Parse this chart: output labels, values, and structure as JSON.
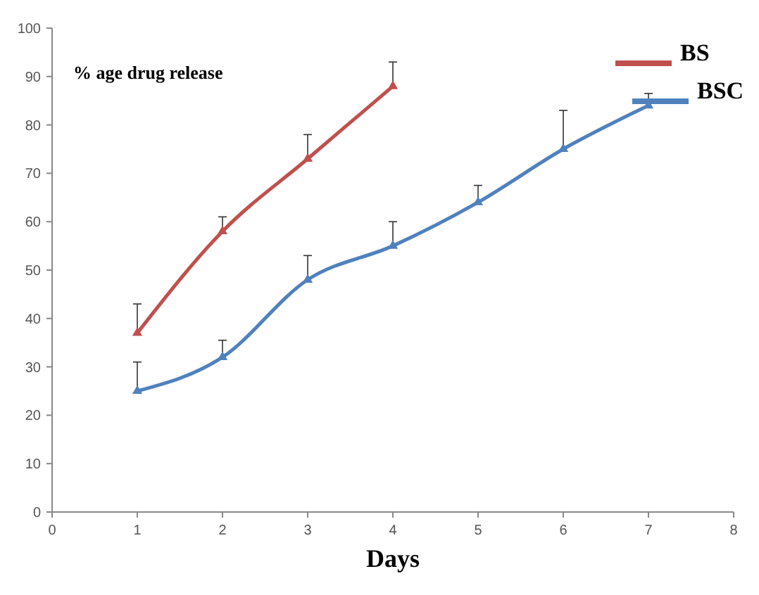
{
  "chart_data": {
    "type": "line",
    "xlabel": "Days",
    "annotations": [
      "% age drug release"
    ],
    "x": [
      1,
      2,
      3,
      4,
      5,
      6,
      7
    ],
    "series": [
      {
        "name": "BS",
        "color": "#c0504d",
        "values": [
          37,
          58,
          73,
          88,
          null,
          null,
          null
        ],
        "errors": [
          [
            37,
            43
          ],
          [
            58,
            61
          ],
          [
            73,
            78
          ],
          [
            88,
            93
          ],
          null,
          null,
          null
        ]
      },
      {
        "name": "BSC",
        "color": "#4f81bd",
        "values": [
          25,
          32,
          48,
          55,
          64,
          75,
          84
        ],
        "errors": [
          [
            25,
            31
          ],
          [
            32,
            35.5
          ],
          [
            48,
            53
          ],
          [
            55,
            60
          ],
          [
            64,
            67.5
          ],
          [
            75,
            83
          ],
          [
            84,
            86.5
          ]
        ]
      }
    ],
    "xlim": [
      0,
      8
    ],
    "xticks": [
      0,
      1,
      2,
      3,
      4,
      5,
      6,
      7,
      8
    ],
    "ylim": [
      0,
      100
    ],
    "yticks": [
      0,
      10,
      20,
      30,
      40,
      50,
      60,
      70,
      80,
      90,
      100
    ],
    "grid": false,
    "legend": "top right",
    "marker": "triangle",
    "line_style": "solid"
  }
}
